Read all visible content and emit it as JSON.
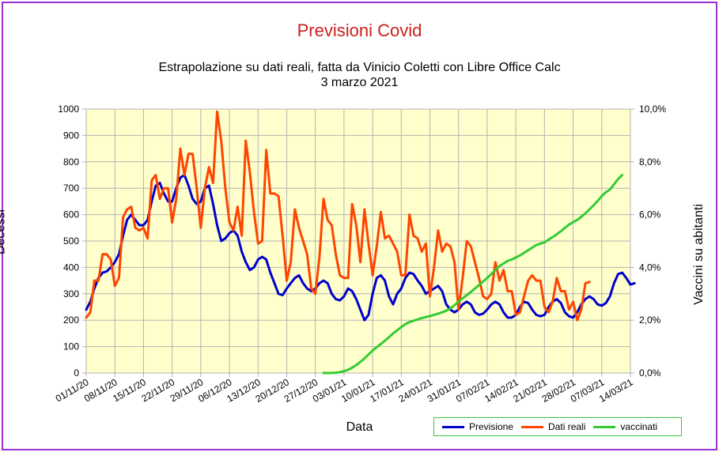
{
  "chart_data": {
    "type": "line",
    "title": "Previsioni Covid",
    "subtitle_line1": "Estrapolazione su dati reali, fatta da Vinicio Coletti con Libre Office Calc",
    "subtitle_line2": "3 marzo 2021",
    "xlabel": "Data",
    "ylabel": "Decessi",
    "y2label": "Vaccini su abitanti",
    "ylim": [
      0,
      1000
    ],
    "y2lim": [
      0,
      10
    ],
    "y_ticks": [
      "0",
      "100",
      "200",
      "300",
      "400",
      "500",
      "600",
      "700",
      "800",
      "900",
      "1000"
    ],
    "y2_ticks": [
      "0,0%",
      "2,0%",
      "4,0%",
      "6,0%",
      "8,0%",
      "10,0%"
    ],
    "x_tick_labels": [
      "01/11/20",
      "08/11/20",
      "15/11/20",
      "22/11/20",
      "29/11/20",
      "06/12/20",
      "13/12/20",
      "20/12/20",
      "27/12/20",
      "03/01/21",
      "10/01/21",
      "17/01/21",
      "24/01/21",
      "31/01/21",
      "07/02/21",
      "14/02/21",
      "21/02/21",
      "28/02/21",
      "07/03/21",
      "14/03/21"
    ],
    "x_start": "01/11/20",
    "x_end": "14/03/21",
    "grid": true,
    "legend_position": "bottom-right",
    "series": [
      {
        "name": "Previsione",
        "color": "#0000cc",
        "axis": "left",
        "start_day": 0,
        "values": [
          240,
          270,
          320,
          360,
          380,
          385,
          400,
          420,
          450,
          520,
          580,
          600,
          580,
          560,
          560,
          580,
          650,
          710,
          720,
          680,
          650,
          650,
          700,
          740,
          750,
          710,
          660,
          640,
          650,
          700,
          710,
          640,
          560,
          500,
          510,
          530,
          540,
          520,
          460,
          420,
          390,
          400,
          430,
          440,
          430,
          380,
          340,
          300,
          295,
          320,
          340,
          360,
          370,
          340,
          320,
          310,
          320,
          340,
          350,
          340,
          300,
          280,
          275,
          290,
          320,
          310,
          280,
          240,
          200,
          220,
          300,
          360,
          370,
          350,
          290,
          260,
          300,
          320,
          360,
          380,
          375,
          350,
          330,
          300,
          310,
          320,
          330,
          310,
          260,
          240,
          230,
          240,
          260,
          270,
          260,
          230,
          220,
          225,
          240,
          260,
          270,
          260,
          230,
          210,
          210,
          220,
          250,
          270,
          265,
          240,
          220,
          215,
          220,
          250,
          270,
          280,
          265,
          230,
          215,
          210,
          230,
          260,
          280,
          290,
          280,
          260,
          255,
          265,
          290,
          340,
          375,
          380,
          360,
          335,
          340
        ]
      },
      {
        "name": "Dati reali",
        "color": "#ff4500",
        "axis": "left",
        "start_day": 0,
        "values": [
          210,
          230,
          350,
          350,
          450,
          450,
          430,
          330,
          360,
          590,
          620,
          630,
          550,
          540,
          550,
          510,
          730,
          750,
          660,
          700,
          700,
          570,
          660,
          850,
          750,
          830,
          830,
          700,
          550,
          700,
          780,
          720,
          990,
          880,
          700,
          570,
          540,
          630,
          520,
          880,
          760,
          610,
          490,
          500,
          845,
          680,
          680,
          670,
          520,
          350,
          420,
          620,
          550,
          500,
          450,
          320,
          300,
          440,
          660,
          580,
          560,
          450,
          370,
          360,
          360,
          640,
          560,
          420,
          620,
          490,
          370,
          480,
          610,
          510,
          520,
          490,
          460,
          370,
          370,
          600,
          520,
          510,
          460,
          490,
          290,
          400,
          540,
          460,
          490,
          480,
          420,
          240,
          360,
          500,
          480,
          420,
          360,
          290,
          280,
          300,
          420,
          350,
          390,
          310,
          310,
          220,
          230,
          290,
          350,
          370,
          350,
          350,
          250,
          230,
          270,
          360,
          310,
          310,
          240,
          270,
          200,
          240,
          340,
          345
        ]
      },
      {
        "name": "vaccinati",
        "color": "#33cc33",
        "axis": "right",
        "start_day": 58,
        "values": [
          0,
          0,
          0,
          0.01,
          0.03,
          0.07,
          0.12,
          0.2,
          0.3,
          0.42,
          0.55,
          0.7,
          0.85,
          0.98,
          1.1,
          1.22,
          1.36,
          1.5,
          1.62,
          1.74,
          1.85,
          1.93,
          1.98,
          2.03,
          2.08,
          2.12,
          2.16,
          2.2,
          2.25,
          2.3,
          2.36,
          2.45,
          2.57,
          2.7,
          2.83,
          2.95,
          3.07,
          3.2,
          3.33,
          3.47,
          3.6,
          3.75,
          3.9,
          4.05,
          4.15,
          4.25,
          4.3,
          4.38,
          4.45,
          4.55,
          4.65,
          4.75,
          4.85,
          4.9,
          4.95,
          5.05,
          5.15,
          5.25,
          5.37,
          5.5,
          5.62,
          5.72,
          5.8,
          5.92,
          6.05,
          6.2,
          6.35,
          6.52,
          6.7,
          6.85,
          6.95,
          7.15,
          7.35,
          7.5
        ]
      }
    ]
  }
}
